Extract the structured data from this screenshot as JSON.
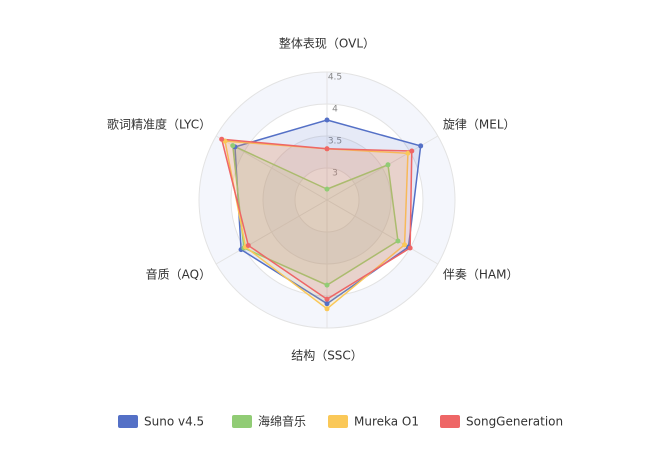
{
  "chart_data": {
    "type": "radar",
    "categories": [
      "整体表现（OVL）",
      "旋律（MEL）",
      "伴奏（HAM）",
      "结构（SSC）",
      "音质（AQ）",
      "歌词精准度（LYC）"
    ],
    "rlim": [
      2.5,
      4.5
    ],
    "rticks": [
      3.0,
      3.5,
      4.0,
      4.5
    ],
    "series": [
      {
        "name": "Suno v4.5",
        "color": "#5470c6",
        "values": [
          3.75,
          4.19,
          3.97,
          4.12,
          4.05,
          4.16
        ]
      },
      {
        "name": "海绵音乐",
        "color": "#91cc75",
        "values": [
          2.67,
          3.6,
          3.78,
          3.83,
          4.0,
          4.2
        ]
      },
      {
        "name": "Mureka O1",
        "color": "#fac858",
        "values": [
          3.3,
          3.96,
          3.9,
          4.2,
          3.97,
          4.34
        ]
      },
      {
        "name": "SongGeneration",
        "color": "#ee6666",
        "values": [
          3.3,
          4.03,
          4.0,
          4.05,
          3.92,
          4.4
        ]
      }
    ]
  }
}
